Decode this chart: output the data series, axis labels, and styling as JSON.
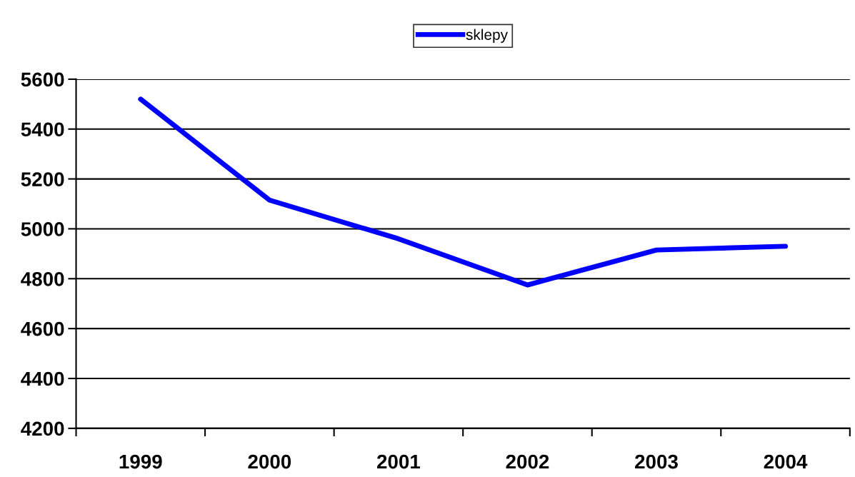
{
  "chart_data": {
    "type": "line",
    "categories": [
      "1999",
      "2000",
      "2001",
      "2002",
      "2003",
      "2004"
    ],
    "series": [
      {
        "name": "sklepy",
        "color": "#0000ff",
        "values": [
          5520,
          5115,
          4960,
          4775,
          4915,
          4930
        ]
      }
    ],
    "ylim": [
      4200,
      5600
    ],
    "yticks": [
      4200,
      4400,
      4600,
      4800,
      5000,
      5200,
      5400,
      5600
    ],
    "grid": "y",
    "legend": "top",
    "marker": "none",
    "line_style": "solid"
  }
}
